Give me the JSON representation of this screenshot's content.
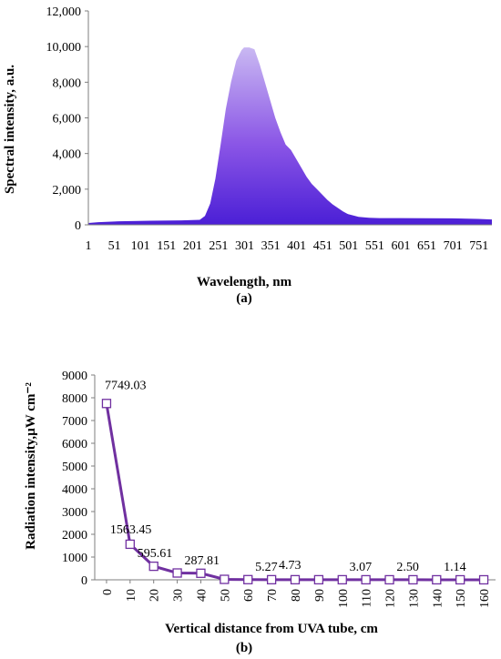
{
  "colors": {
    "spectrum_top": "#c9b8f2",
    "spectrum_mid": "#8a55e6",
    "spectrum_bottom": "#4b1fd6",
    "line": "#7030a0",
    "axis": "#7f7f7f"
  },
  "chart_data": [
    {
      "type": "area",
      "panel_label": "(a)",
      "xlabel": "Wavelength, nm",
      "ylabel": "Spectral intensity, a.u.",
      "ylim": [
        0,
        12000
      ],
      "yticks": [
        "0",
        "2,000",
        "4,000",
        "6,000",
        "8,000",
        "10,000",
        "12,000"
      ],
      "yticks_values": [
        0,
        2000,
        4000,
        6000,
        8000,
        10000,
        12000
      ],
      "xticks": [
        "1",
        "51",
        "101",
        "151",
        "201",
        "251",
        "301",
        "351",
        "401",
        "451",
        "501",
        "551",
        "601",
        "651",
        "701",
        "751"
      ],
      "xlim": [
        1,
        776
      ],
      "grid": false,
      "x": [
        1,
        20,
        60,
        120,
        180,
        215,
        225,
        235,
        245,
        255,
        265,
        275,
        285,
        295,
        300,
        310,
        320,
        330,
        340,
        350,
        360,
        370,
        380,
        390,
        400,
        410,
        420,
        430,
        440,
        450,
        460,
        470,
        480,
        490,
        500,
        520,
        540,
        560,
        600,
        650,
        700,
        750,
        776
      ],
      "y": [
        100,
        150,
        200,
        230,
        250,
        280,
        500,
        1200,
        2600,
        4500,
        6500,
        8000,
        9200,
        9800,
        9950,
        9950,
        9850,
        9000,
        8000,
        7000,
        6000,
        5200,
        4500,
        4200,
        3700,
        3200,
        2700,
        2300,
        2000,
        1700,
        1400,
        1150,
        950,
        750,
        600,
        450,
        400,
        380,
        380,
        370,
        360,
        330,
        300
      ]
    },
    {
      "type": "line",
      "panel_label": "(b)",
      "xlabel": "Vertical distance from UVA tube, cm",
      "ylabel": "Radiation intensity,µW cm⁻²",
      "ylim": [
        0,
        9000
      ],
      "yticks": [
        "0",
        "1000",
        "2000",
        "3000",
        "4000",
        "5000",
        "6000",
        "7000",
        "8000",
        "9000"
      ],
      "yticks_values": [
        0,
        1000,
        2000,
        3000,
        4000,
        5000,
        6000,
        7000,
        8000,
        9000
      ],
      "categories": [
        "0",
        "10",
        "20",
        "30",
        "40",
        "50",
        "60",
        "70",
        "80",
        "90",
        "100",
        "110",
        "120",
        "130",
        "140",
        "150",
        "160"
      ],
      "grid": false,
      "values": [
        7749.03,
        1563.45,
        595.61,
        300,
        287.81,
        20,
        8,
        5.27,
        4.73,
        4,
        3.5,
        3.07,
        2.8,
        2.5,
        2,
        1.14,
        1
      ],
      "data_labels": [
        {
          "index": 0,
          "text": "7749.03"
        },
        {
          "index": 1,
          "text": "1563.45"
        },
        {
          "index": 2,
          "text": "595.61"
        },
        {
          "index": 4,
          "text": "287.81"
        },
        {
          "index": 7,
          "text": "5.27"
        },
        {
          "index": 8,
          "text": "4.73"
        },
        {
          "index": 11,
          "text": "3.07"
        },
        {
          "index": 13,
          "text": "2.50"
        },
        {
          "index": 15,
          "text": "1.14"
        }
      ]
    }
  ]
}
